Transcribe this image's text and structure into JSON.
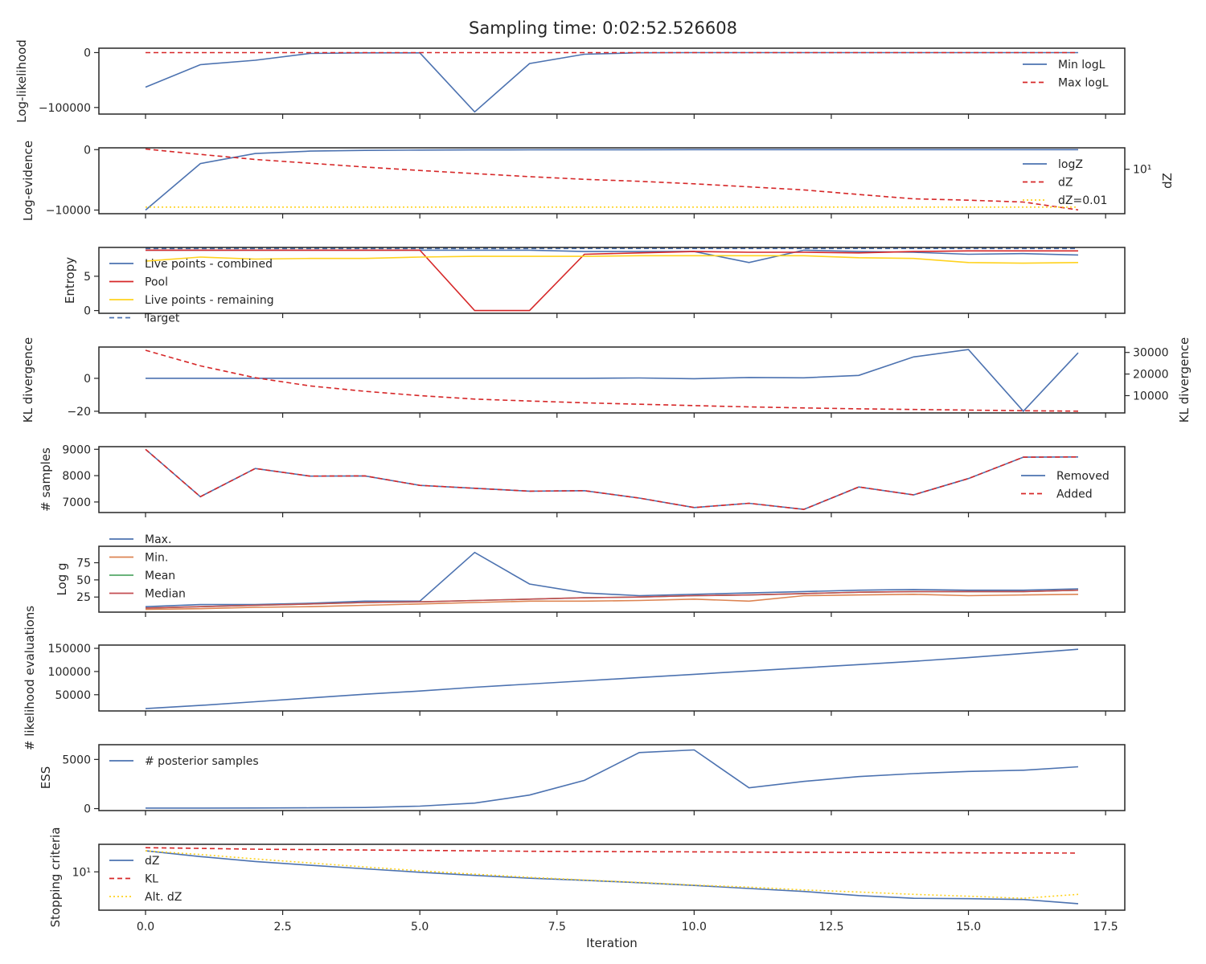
{
  "figure": {
    "title": "Sampling time: 0:02:52.526608",
    "xlabel": "Iteration",
    "x_ticks": [
      0.0,
      2.5,
      5.0,
      7.5,
      10.0,
      12.5,
      15.0,
      17.5
    ],
    "x_tick_labels": [
      "0.0",
      "2.5",
      "5.0",
      "7.5",
      "10.0",
      "12.5",
      "15.0",
      "17.5"
    ],
    "xlim": [
      -0.85,
      17.85
    ]
  },
  "colors": {
    "blue": "#4c72b0",
    "red": "#d62728",
    "yellow": "#ffd21e",
    "orange": "#dd8452",
    "green": "#55a868",
    "crimson": "#c44e52"
  },
  "chart_data": [
    {
      "type": "line",
      "ylabel": "Log-likelihood",
      "ylim": [
        -112000,
        8000
      ],
      "yticks": [
        0,
        -100000
      ],
      "ytick_labels": [
        "0",
        "−100000"
      ],
      "legend_position": "right",
      "x": [
        0,
        1,
        2,
        3,
        4,
        5,
        6,
        7,
        8,
        9,
        10,
        11,
        12,
        13,
        14,
        15,
        16,
        17
      ],
      "series": [
        {
          "name": "Min logL",
          "color": "blue",
          "dash": "",
          "values": [
            -63000,
            -22000,
            -14000,
            -1500,
            -500,
            -500,
            -108000,
            -20000,
            -3000,
            -300,
            -100,
            -50,
            -30,
            -20,
            -10,
            -10,
            -5,
            -5
          ]
        },
        {
          "name": "Max logL",
          "color": "red",
          "dash": "6,4",
          "values": [
            0,
            0,
            0,
            0,
            0,
            0,
            0,
            0,
            0,
            0,
            0,
            0,
            0,
            0,
            0,
            0,
            0,
            0
          ]
        }
      ]
    },
    {
      "type": "line",
      "ylabel": "Log-evidence",
      "ylim": [
        -10600,
        300
      ],
      "yticks": [
        0,
        -10000
      ],
      "ytick_labels": [
        "0",
        "−10000"
      ],
      "legend_position": "right",
      "right_axis": {
        "label": "dZ",
        "scale": "log",
        "ticks": [
          10
        ],
        "tick_labels": [
          "10¹"
        ],
        "ylim": [
          0.003,
          500
        ]
      },
      "x": [
        0,
        1,
        2,
        3,
        4,
        5,
        6,
        7,
        8,
        9,
        10,
        11,
        12,
        13,
        14,
        15,
        16,
        17
      ],
      "series": [
        {
          "name": "logZ",
          "color": "blue",
          "dash": "",
          "values": [
            -10000,
            -2300,
            -650,
            -250,
            -120,
            -70,
            -45,
            -30,
            -20,
            -15,
            -12,
            -10,
            -8,
            -7,
            -6,
            -6,
            -5,
            -5
          ]
        },
        {
          "name": "dZ",
          "color": "red",
          "dash": "6,4",
          "axis": "right",
          "values": [
            400,
            150,
            60,
            30,
            15,
            8,
            4.5,
            2.6,
            1.6,
            1.1,
            0.7,
            0.4,
            0.23,
            0.1,
            0.045,
            0.035,
            0.025,
            0.006
          ]
        },
        {
          "name": "dZ=0.01",
          "color": "yellow",
          "dash": "2,3",
          "axis": "right",
          "values": [
            0.01,
            0.01,
            0.01,
            0.01,
            0.01,
            0.01,
            0.01,
            0.01,
            0.01,
            0.01,
            0.01,
            0.01,
            0.01,
            0.01,
            0.01,
            0.01,
            0.01,
            0.01
          ]
        }
      ]
    },
    {
      "type": "line",
      "ylabel": "Entropy",
      "ylim": [
        -0.4,
        9.2
      ],
      "yticks": [
        0,
        5
      ],
      "ytick_labels": [
        "0",
        "5"
      ],
      "legend_position": "upper-left",
      "x": [
        0,
        1,
        2,
        3,
        4,
        5,
        6,
        7,
        8,
        9,
        10,
        11,
        12,
        13,
        14,
        15,
        16,
        17
      ],
      "series": [
        {
          "name": "Live points - combined",
          "color": "blue",
          "dash": "",
          "values": [
            8.8,
            8.8,
            8.8,
            8.8,
            8.8,
            8.8,
            8.8,
            8.8,
            8.6,
            8.6,
            8.6,
            7.0,
            8.8,
            8.6,
            8.5,
            8.2,
            8.3,
            8.1
          ]
        },
        {
          "name": "Pool",
          "color": "red",
          "dash": "",
          "values": [
            8.8,
            8.8,
            8.8,
            8.8,
            8.8,
            8.8,
            0,
            0,
            8.2,
            8.4,
            8.6,
            8.5,
            8.5,
            8.4,
            8.6,
            8.7,
            8.7,
            8.7
          ]
        },
        {
          "name": "Live points - remaining",
          "color": "yellow",
          "dash": "",
          "values": [
            7.2,
            7.8,
            7.5,
            7.6,
            7.6,
            7.8,
            7.9,
            7.9,
            7.9,
            8.0,
            8.0,
            8.0,
            8.0,
            7.7,
            7.6,
            7.0,
            6.9,
            7.0
          ]
        },
        {
          "name": "Target",
          "color": "blue",
          "dash": "6,4",
          "values": [
            9.05,
            9.05,
            9.05,
            9.05,
            9.05,
            9.05,
            9.05,
            9.05,
            9.05,
            9.05,
            9.05,
            9.05,
            9.05,
            9.05,
            9.05,
            9.05,
            9.05,
            9.05
          ]
        }
      ]
    },
    {
      "type": "line",
      "ylabel": "KL divergence",
      "ylim": [
        -21,
        19
      ],
      "yticks": [
        0,
        -20
      ],
      "ytick_labels": [
        "0",
        "−20"
      ],
      "right_axis": {
        "label": "KL divergence",
        "scale": "linear",
        "ticks": [
          10000,
          20000,
          30000
        ],
        "tick_labels": [
          "10000",
          "20000",
          "30000"
        ],
        "ylim": [
          2000,
          32500
        ]
      },
      "x": [
        0,
        1,
        2,
        3,
        4,
        5,
        6,
        7,
        8,
        9,
        10,
        11,
        12,
        13,
        14,
        15,
        16,
        17
      ],
      "series": [
        {
          "name": "",
          "color": "blue",
          "dash": "",
          "values": [
            0,
            0,
            0,
            0,
            0,
            0,
            0,
            0,
            0,
            0.2,
            -0.2,
            0.5,
            0.3,
            1.8,
            13,
            17.5,
            -20,
            15.5
          ]
        },
        {
          "name": "",
          "color": "red",
          "dash": "6,4",
          "axis": "right",
          "values": [
            31000,
            23800,
            18300,
            14500,
            12000,
            10000,
            8400,
            7500,
            6700,
            6000,
            5400,
            4800,
            4300,
            3900,
            3600,
            3300,
            3000,
            2800
          ]
        }
      ]
    },
    {
      "type": "line",
      "ylabel": "# samples",
      "ylim": [
        6600,
        9100
      ],
      "yticks": [
        9000,
        8000,
        7000
      ],
      "ytick_labels": [
        "9000",
        "8000",
        "7000"
      ],
      "legend_position": "right",
      "x": [
        0,
        1,
        2,
        3,
        4,
        5,
        6,
        7,
        8,
        9,
        10,
        11,
        12,
        13,
        14,
        15,
        16,
        17
      ],
      "series": [
        {
          "name": "Removed",
          "color": "blue",
          "dash": "",
          "values": [
            9000,
            7200,
            8270,
            7980,
            7990,
            7630,
            7520,
            7410,
            7430,
            7150,
            6790,
            6950,
            6720,
            7570,
            7270,
            7890,
            8700,
            8710
          ]
        },
        {
          "name": "Added",
          "color": "red",
          "dash": "6,4",
          "values": [
            9000,
            7200,
            8270,
            7980,
            7990,
            7630,
            7520,
            7410,
            7430,
            7150,
            6790,
            6950,
            6720,
            7570,
            7270,
            7890,
            8700,
            8710
          ]
        }
      ]
    },
    {
      "type": "line",
      "ylabel": "Log g",
      "ylim": [
        3,
        99
      ],
      "yticks": [
        25,
        50,
        75
      ],
      "ytick_labels": [
        "25",
        "50",
        "75"
      ],
      "legend_position": "upper-left",
      "x": [
        0,
        1,
        2,
        3,
        4,
        5,
        6,
        7,
        8,
        9,
        10,
        11,
        12,
        13,
        14,
        15,
        16,
        17
      ],
      "series": [
        {
          "name": "Max.",
          "color": "blue",
          "dash": "",
          "values": [
            11,
            14,
            14,
            16,
            19,
            19,
            90,
            44,
            31,
            27,
            29,
            31,
            33,
            35,
            36,
            35,
            35,
            37
          ]
        },
        {
          "name": "Min.",
          "color": "orange",
          "dash": "",
          "values": [
            7,
            8,
            10,
            11,
            13,
            15,
            17,
            19,
            19,
            20,
            22,
            19,
            27,
            28,
            29,
            27,
            28,
            29
          ]
        },
        {
          "name": "Mean",
          "color": "green",
          "dash": "",
          "values": [
            9,
            11,
            13,
            15,
            17,
            18,
            20,
            22,
            24,
            25,
            27,
            28,
            30,
            32,
            33,
            33,
            33,
            35
          ]
        },
        {
          "name": "Median",
          "color": "crimson",
          "dash": "",
          "values": [
            9,
            11,
            13,
            15,
            17,
            18,
            20,
            22,
            24,
            25,
            27,
            28,
            30,
            32,
            33,
            33,
            33,
            35
          ]
        }
      ]
    },
    {
      "type": "line",
      "ylabel": "# likelihood evaluations",
      "ylim": [
        15000,
        157000
      ],
      "yticks": [
        50000,
        100000,
        150000
      ],
      "ytick_labels": [
        "50000",
        "100000",
        "150000"
      ],
      "x": [
        0,
        1,
        2,
        3,
        4,
        5,
        6,
        7,
        8,
        9,
        10,
        11,
        12,
        13,
        14,
        15,
        16,
        17
      ],
      "series": [
        {
          "name": "",
          "color": "blue",
          "dash": "",
          "values": [
            20000,
            27000,
            35000,
            43000,
            51000,
            58000,
            66000,
            73000,
            80000,
            87000,
            94000,
            101000,
            108000,
            115000,
            122000,
            130000,
            139000,
            148000
          ]
        }
      ]
    },
    {
      "type": "line",
      "ylabel": "ESS",
      "ylim": [
        -200,
        6500
      ],
      "yticks": [
        0,
        5000
      ],
      "ytick_labels": [
        "0",
        "5000"
      ],
      "legend_position": "upper-left",
      "x": [
        0,
        1,
        2,
        3,
        4,
        5,
        6,
        7,
        8,
        9,
        10,
        11,
        12,
        13,
        14,
        15,
        16,
        17
      ],
      "series": [
        {
          "name": "# posterior samples",
          "color": "blue",
          "dash": "",
          "values": [
            50,
            50,
            60,
            80,
            110,
            250,
            560,
            1380,
            2870,
            5700,
            5970,
            2110,
            2770,
            3260,
            3560,
            3780,
            3900,
            4250
          ]
        }
      ]
    },
    {
      "type": "line",
      "ylabel": "Stopping criteria",
      "scale": "log",
      "ylim": [
        1.75,
        35
      ],
      "yticks": [
        10
      ],
      "ytick_labels": [
        "10¹"
      ],
      "legend_position": "upper-left",
      "x": [
        0,
        1,
        2,
        3,
        4,
        5,
        6,
        7,
        8,
        9,
        10,
        11,
        12,
        13,
        14,
        15,
        16,
        17
      ],
      "series": [
        {
          "name": "dZ",
          "color": "blue",
          "dash": "",
          "values": [
            26,
            20,
            16,
            13.5,
            11.5,
            9.8,
            8.5,
            7.5,
            6.8,
            6.1,
            5.4,
            4.7,
            4.1,
            3.4,
            3.0,
            2.95,
            2.85,
            2.35
          ]
        },
        {
          "name": "KL",
          "color": "red",
          "dash": "6,4",
          "values": [
            30,
            29,
            28,
            27.5,
            27,
            26.5,
            26,
            25.5,
            25.2,
            25,
            24.8,
            24.6,
            24.4,
            24.2,
            24,
            23.8,
            23.6,
            23.5
          ]
        },
        {
          "name": "Alt. dZ",
          "color": "yellow",
          "dash": "2,3",
          "values": [
            26,
            22,
            18,
            15,
            12.5,
            10.5,
            9,
            7.8,
            6.9,
            6.2,
            5.5,
            5,
            4.4,
            4,
            3.6,
            3.3,
            3.0,
            3.6
          ]
        }
      ]
    }
  ]
}
